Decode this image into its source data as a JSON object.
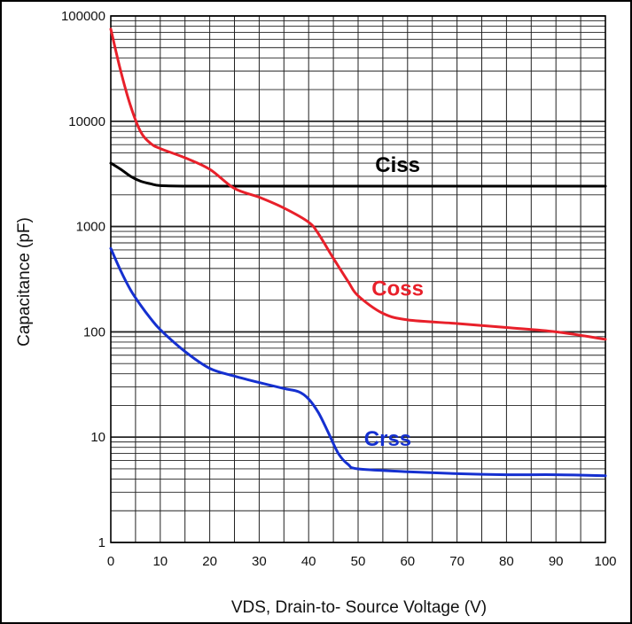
{
  "chart_data": {
    "type": "line",
    "title": "",
    "xlabel": "VDS, Drain-to- Source Voltage (V)",
    "ylabel": "Capacitance (pF)",
    "xlim": [
      0,
      100
    ],
    "ylim": [
      1,
      100000
    ],
    "yscale": "log",
    "grid": true,
    "legend": "labels on curves",
    "x_ticks": [
      "0",
      "10",
      "20",
      "30",
      "40",
      "50",
      "60",
      "70",
      "80",
      "90",
      "100"
    ],
    "y_ticks": [
      "1",
      "10",
      "100",
      "1000",
      "10000",
      "100000"
    ],
    "series": [
      {
        "name": "Ciss",
        "color": "#000000",
        "x": [
          0,
          2,
          4,
          6,
          8,
          10,
          15,
          20,
          30,
          40,
          50,
          60,
          70,
          80,
          90,
          100
        ],
        "y": [
          4000,
          3500,
          3000,
          2700,
          2550,
          2450,
          2420,
          2420,
          2420,
          2420,
          2420,
          2420,
          2420,
          2420,
          2420,
          2420
        ]
      },
      {
        "name": "Coss",
        "color": "#e8202a",
        "x": [
          0,
          2,
          4,
          6,
          8,
          10,
          15,
          20,
          25,
          30,
          35,
          40,
          42,
          45,
          48,
          50,
          55,
          60,
          70,
          80,
          90,
          100
        ],
        "y": [
          75000,
          30000,
          14000,
          8000,
          6200,
          5500,
          4500,
          3500,
          2300,
          1900,
          1500,
          1100,
          850,
          500,
          300,
          220,
          150,
          130,
          120,
          110,
          100,
          85
        ]
      },
      {
        "name": "Crss",
        "color": "#1530d0",
        "x": [
          0,
          2,
          4,
          6,
          8,
          10,
          15,
          20,
          25,
          30,
          35,
          38,
          40,
          42,
          44,
          46,
          48,
          50,
          60,
          70,
          80,
          90,
          100
        ],
        "y": [
          620,
          380,
          250,
          180,
          135,
          105,
          65,
          45,
          38,
          33,
          29,
          27,
          23,
          17,
          11,
          7,
          5.5,
          5,
          4.7,
          4.5,
          4.4,
          4.4,
          4.3
        ]
      }
    ]
  },
  "colors": {
    "grid": "#222222",
    "background": "#ffffff"
  }
}
